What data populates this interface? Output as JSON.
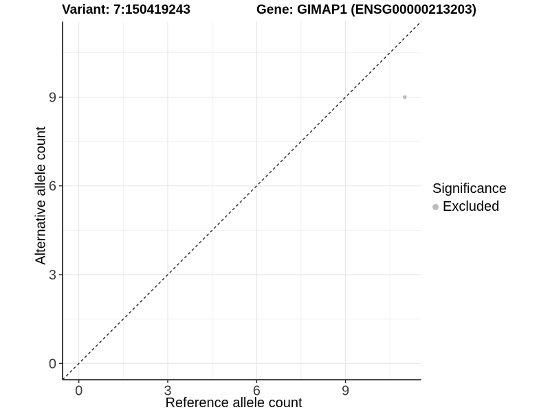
{
  "title": {
    "variant": "Variant: 7:150419243",
    "gene": "Gene: GIMAP1 (ENSG00000213203)"
  },
  "legend": {
    "title": "Significance",
    "items": [
      {
        "label": "Excluded",
        "color": "#bcbcbc"
      }
    ]
  },
  "chart_data": {
    "type": "scatter",
    "title": "Variant: 7:150419243   Gene: GIMAP1 (ENSG00000213203)",
    "xlabel": "Reference allele count",
    "ylabel": "Alternative allele count",
    "xlim": [
      -0.55,
      11.55
    ],
    "ylim": [
      -0.55,
      11.55
    ],
    "x_breaks": [
      0,
      3,
      6,
      9
    ],
    "y_breaks": [
      0,
      3,
      6,
      9
    ],
    "x_minor_breaks": [
      1.5,
      4.5,
      7.5,
      10.5
    ],
    "y_minor_breaks": [
      1.5,
      4.5,
      7.5,
      10.5
    ],
    "x_tick_labels": [
      "0",
      "3",
      "6",
      "9"
    ],
    "y_tick_labels": [
      "0",
      "3",
      "6",
      "9"
    ],
    "grid": true,
    "legend_position": "right",
    "reference_line": {
      "kind": "identity",
      "style": "dashed",
      "color": "#111111"
    },
    "series": [
      {
        "name": "Excluded",
        "color": "#bcbcbc",
        "points": [
          {
            "x": 11,
            "y": 9
          }
        ]
      }
    ]
  },
  "style_colors": {
    "grid_major": "#e3e3e3",
    "grid_minor": "#efefef",
    "axis_line": "#2b2b2b",
    "tick_mark": "#2b2b2b",
    "tick_label": "#3a3a3a"
  }
}
